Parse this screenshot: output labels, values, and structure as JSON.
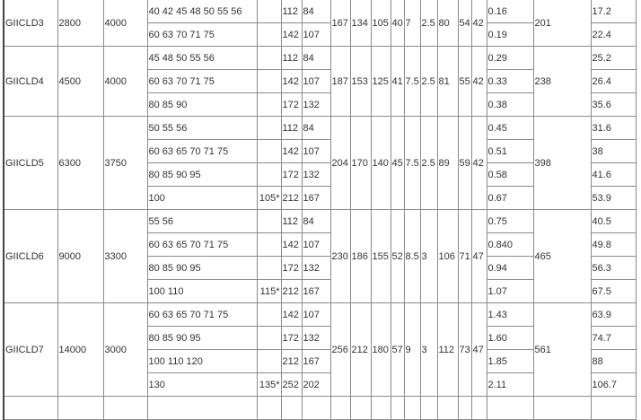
{
  "table": {
    "groups": [
      {
        "model": "GIICLD3",
        "c2": "2800",
        "c3": "4000",
        "shared": [
          "167",
          "134",
          "105",
          "40",
          "7",
          "2.5",
          "80",
          "54",
          "42"
        ],
        "c18": "201",
        "rows": [
          [
            "40 42 45 48 50 55 56",
            "",
            "112",
            "84",
            "0.16",
            "17.2"
          ],
          [
            "60 63 70 71 75",
            "",
            "142",
            "107",
            "0.19",
            "22.4"
          ]
        ]
      },
      {
        "model": "GIICLD4",
        "c2": "4500",
        "c3": "4000",
        "shared": [
          "187",
          "153",
          "125",
          "41",
          "7.5",
          "2.5",
          "81",
          "55",
          "42"
        ],
        "c18": "238",
        "rows": [
          [
            "45 48 50 55 56",
            "",
            "112",
            "84",
            "0.29",
            "25.2"
          ],
          [
            "60 63 70 71 75",
            "",
            "142",
            "107",
            "0.33",
            "26.4"
          ],
          [
            "80 85 90",
            "",
            "172",
            "132",
            "0.38",
            "35.6"
          ]
        ]
      },
      {
        "model": "GIICLD5",
        "c2": "6300",
        "c3": "3750",
        "shared": [
          "204",
          "170",
          "140",
          "45",
          "7.5",
          "2.5",
          "89",
          "59",
          "42"
        ],
        "c18": "398",
        "rows": [
          [
            "50 55 56",
            "",
            "112",
            "84",
            "0.45",
            "31.6"
          ],
          [
            "60 63 65 70 71 75",
            "",
            "142",
            "107",
            "0.51",
            "38"
          ],
          [
            "80 85 90 95",
            "",
            "172",
            "132",
            "0.58",
            "41.6"
          ],
          [
            "100",
            "105*",
            "212",
            "167",
            "0.67",
            "53.9"
          ]
        ]
      },
      {
        "model": "GIICLD6",
        "c2": "9000",
        "c3": "3300",
        "shared": [
          "230",
          "186",
          "155",
          "52",
          "8.5",
          "3",
          "106",
          "71",
          "47"
        ],
        "c18": "465",
        "rows": [
          [
            "55 56",
            "",
            "112",
            "84",
            "0.75",
            "40.5"
          ],
          [
            "60 63 65 70 71 75",
            "",
            "142",
            "107",
            "0.840",
            "49.8"
          ],
          [
            "80 85 90 95",
            "",
            "172",
            "132",
            "0.94",
            "56.3"
          ],
          [
            "100 110",
            "115*",
            "212",
            "167",
            "1.07",
            "67.5"
          ]
        ]
      },
      {
        "model": "GIICLD7",
        "c2": "14000",
        "c3": "3000",
        "shared": [
          "256",
          "212",
          "180",
          "57",
          "9",
          "3",
          "112",
          "73",
          "47"
        ],
        "c18": "561",
        "rows": [
          [
            "60 63 65 70 71 75",
            "",
            "142",
            "107",
            "1.43",
            "63.9"
          ],
          [
            "80 85 90 95",
            "",
            "172",
            "132",
            "1.60",
            "74.7"
          ],
          [
            "100 110 120",
            "",
            "212",
            "167",
            "1.85",
            "88"
          ],
          [
            "130",
            "135*",
            "252",
            "202",
            "2.11",
            "106.7"
          ]
        ]
      }
    ]
  }
}
